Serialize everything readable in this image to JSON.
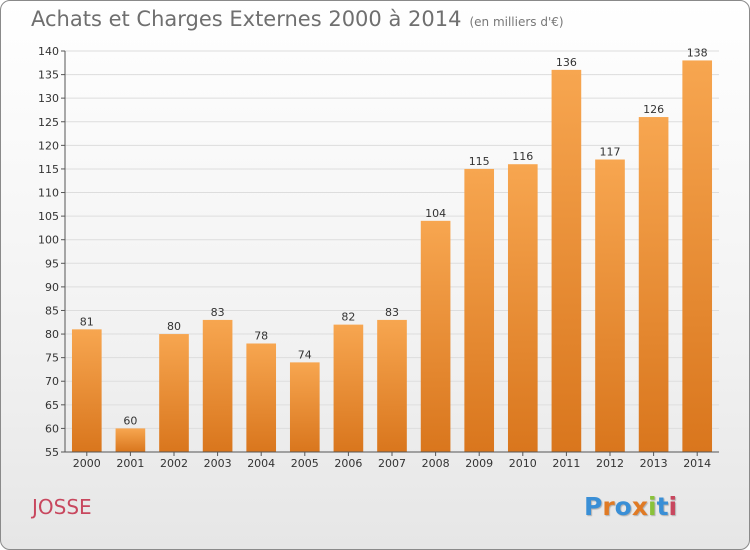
{
  "header": {
    "title": "Achats et Charges Externes 2000 à 2014",
    "unit": "(en milliers d'€)"
  },
  "footer": {
    "commune": "JOSSE",
    "logo": "Proxiti"
  },
  "colors": {
    "bar_light": "#f7a650",
    "bar_dark": "#d9761d",
    "grid": "#dddddd",
    "commune": "#c8475e",
    "logo_letters": [
      "#3a8fd6",
      "#e07a24",
      "#3a8fd6",
      "#e07a24",
      "#8ac23a",
      "#3a8fd6",
      "#c8475e"
    ]
  },
  "chart_data": {
    "type": "bar",
    "categories": [
      "2000",
      "2001",
      "2002",
      "2003",
      "2004",
      "2005",
      "2006",
      "2007",
      "2008",
      "2009",
      "2010",
      "2011",
      "2012",
      "2013",
      "2014"
    ],
    "values": [
      81,
      60,
      80,
      83,
      78,
      74,
      82,
      83,
      104,
      115,
      116,
      136,
      117,
      126,
      138
    ],
    "ylim": [
      55,
      140
    ],
    "yticks": [
      55,
      60,
      65,
      70,
      75,
      80,
      85,
      90,
      95,
      100,
      105,
      110,
      115,
      120,
      125,
      130,
      135,
      140
    ],
    "grid": true,
    "data_labels": true
  }
}
